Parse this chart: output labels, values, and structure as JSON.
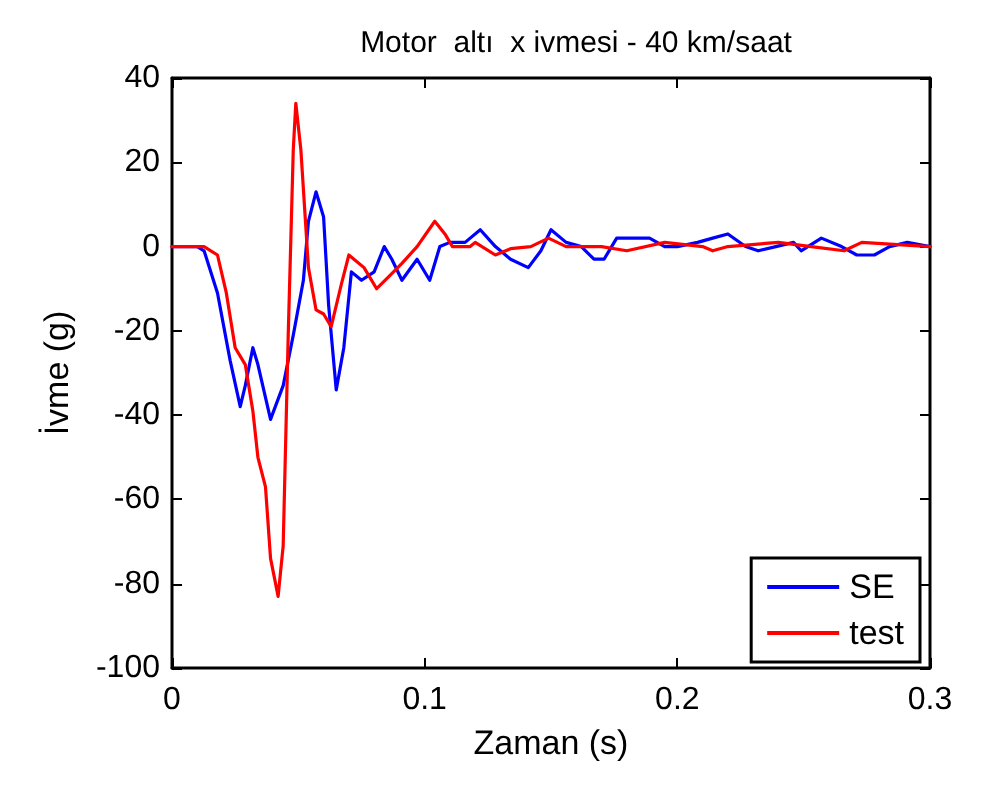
{
  "chart_data": {
    "type": "line",
    "title": "Motor  altı  x ivmesi - 40 km/saat",
    "xlabel": "Zaman (s)",
    "ylabel": "İvme (g)",
    "xlim": [
      0,
      0.3
    ],
    "xticks": [
      0,
      0.1,
      0.2,
      0.3
    ],
    "ylim": [
      -100,
      40
    ],
    "yticks": [
      -100,
      -80,
      -60,
      -40,
      -20,
      0,
      20,
      40
    ],
    "grid": false,
    "legend": "bottom right",
    "marker": "none",
    "line_style": "solid",
    "series": [
      {
        "name": "SE",
        "color": "#0000ff",
        "x": [
          0,
          0.01,
          0.0127,
          0.018,
          0.023,
          0.027,
          0.029,
          0.032,
          0.034,
          0.039,
          0.044,
          0.048,
          0.052,
          0.054,
          0.057,
          0.06,
          0.062,
          0.065,
          0.068,
          0.071,
          0.075,
          0.08,
          0.084,
          0.087,
          0.091,
          0.097,
          0.102,
          0.106,
          0.11,
          0.116,
          0.122,
          0.128,
          0.134,
          0.141,
          0.146,
          0.15,
          0.156,
          0.162,
          0.167,
          0.171,
          0.176,
          0.181,
          0.189,
          0.195,
          0.2,
          0.208,
          0.214,
          0.22,
          0.227,
          0.232,
          0.239,
          0.246,
          0.249,
          0.257,
          0.265,
          0.271,
          0.278,
          0.284,
          0.291,
          0.3
        ],
        "values": [
          0,
          0,
          -1,
          -11,
          -27,
          -38,
          -33,
          -24,
          -28,
          -41,
          -33,
          -21,
          -8,
          6,
          13,
          7,
          -14,
          -34,
          -24,
          -6,
          -8,
          -6,
          0,
          -3,
          -8,
          -3,
          -8,
          0,
          1,
          1,
          4,
          0,
          -3,
          -5,
          -1,
          4,
          1,
          0,
          -3,
          -3,
          2,
          2,
          2,
          0,
          0,
          1,
          2,
          3,
          0,
          -1,
          0,
          1,
          -1,
          2,
          0,
          -2,
          -2,
          0,
          1,
          0
        ]
      },
      {
        "name": "test",
        "color": "#ff0000",
        "x": [
          0,
          0.0127,
          0.018,
          0.0215,
          0.025,
          0.029,
          0.032,
          0.034,
          0.037,
          0.039,
          0.042,
          0.044,
          0.046,
          0.048,
          0.049,
          0.051,
          0.054,
          0.057,
          0.06,
          0.063,
          0.067,
          0.07,
          0.072,
          0.076,
          0.081,
          0.086,
          0.091,
          0.097,
          0.104,
          0.108,
          0.111,
          0.118,
          0.12,
          0.128,
          0.134,
          0.142,
          0.149,
          0.156,
          0.17,
          0.18,
          0.195,
          0.21,
          0.214,
          0.22,
          0.24,
          0.253,
          0.266,
          0.273,
          0.3
        ],
        "values": [
          0,
          0,
          -2,
          -11,
          -24,
          -28,
          -39,
          -50,
          -57,
          -74,
          -83,
          -71,
          -21,
          23,
          34,
          23,
          -5,
          -15,
          -16,
          -19,
          -9,
          -2,
          -3,
          -5,
          -10,
          -7,
          -4,
          0,
          6,
          3,
          0,
          0,
          1,
          -2,
          -0.5,
          0,
          2,
          0,
          0,
          -1,
          1,
          0,
          -1,
          0,
          1,
          0,
          -1,
          1,
          0
        ]
      }
    ]
  }
}
